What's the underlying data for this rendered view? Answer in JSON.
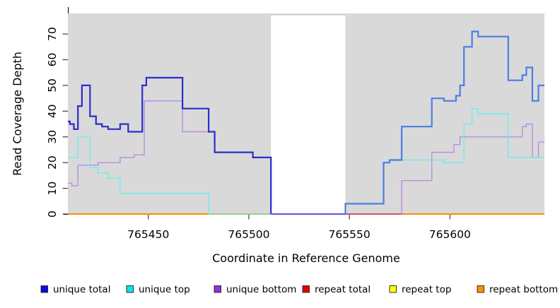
{
  "chart_data": {
    "type": "line",
    "subtype": "step",
    "title": "",
    "xlabel": "Coordinate in Reference Genome",
    "ylabel": "Read Coverage Depth",
    "xlim": [
      765410,
      765647
    ],
    "ylim": [
      0,
      78
    ],
    "x_ticks": [
      765450,
      765500,
      765550,
      765600
    ],
    "y_ticks": [
      0,
      10,
      20,
      30,
      40,
      50,
      60,
      70
    ],
    "grid": false,
    "panel_bg": "#d9d9d9",
    "gap_region": {
      "start": 765511,
      "end": 765548,
      "color": "#ffffff",
      "top_edge_color": "#c4c4c4"
    },
    "series": [
      {
        "name": "repeat total",
        "legend_color": "#e80000",
        "chunks": [
          {
            "color": "#e80000",
            "width": 1.2,
            "points": [
              [
                765410,
                0
              ],
              [
                765647,
                0
              ]
            ]
          }
        ]
      },
      {
        "name": "repeat top",
        "legend_color": "#ffff00",
        "chunks": [
          {
            "color": "#ffe800",
            "width": 1.2,
            "points": [
              [
                765410,
                0
              ],
              [
                765647,
                0
              ]
            ]
          }
        ]
      },
      {
        "name": "repeat bottom",
        "legend_color": "#ff9100",
        "chunks": [
          {
            "color": "#ff8c00",
            "width": 2,
            "points": [
              [
                765410,
                0
              ],
              [
                765647,
                0
              ]
            ]
          }
        ]
      },
      {
        "name": "unique bottom",
        "legend_color": "#9a2ad4",
        "chunks": [
          {
            "color": "#b98ce0",
            "width": 1.4,
            "points": [
              [
                765410,
                12
              ],
              [
                765412,
                11
              ],
              [
                765415,
                19
              ],
              [
                765425,
                20
              ],
              [
                765436,
                22
              ],
              [
                765443,
                23
              ],
              [
                765448,
                44
              ],
              [
                765467,
                32
              ],
              [
                765483,
                24
              ],
              [
                765502,
                22
              ],
              [
                765511,
                0
              ],
              [
                765576,
                13
              ],
              [
                765591,
                24
              ],
              [
                765602,
                27
              ],
              [
                765605,
                30
              ],
              [
                765636,
                34
              ],
              [
                765638,
                35
              ],
              [
                765641,
                22
              ],
              [
                765644,
                28
              ],
              [
                765647,
                28
              ]
            ]
          }
        ]
      },
      {
        "name": "unique top",
        "legend_color": "#00e8e8",
        "chunks": [
          {
            "color": "#6ceeec",
            "width": 1.4,
            "points": [
              [
                765410,
                22
              ],
              [
                765415,
                30
              ],
              [
                765421,
                18
              ],
              [
                765425,
                16
              ],
              [
                765430,
                14
              ],
              [
                765436,
                8
              ],
              [
                765480,
                0
              ],
              [
                765548,
                4
              ],
              [
                765567,
                20
              ],
              [
                765570,
                21
              ],
              [
                765597,
                20
              ],
              [
                765607,
                35
              ],
              [
                765611,
                41
              ],
              [
                765614,
                39
              ],
              [
                765629,
                22
              ],
              [
                765647,
                22
              ]
            ]
          }
        ]
      },
      {
        "name": "unique total",
        "legend_color": "#0a0ae8",
        "chunks": [
          {
            "color": "#2c2cd0",
            "width": 2.2,
            "points": [
              [
                765410,
                36
              ],
              [
                765411,
                35
              ],
              [
                765413,
                33
              ],
              [
                765415,
                42
              ],
              [
                765417,
                50
              ],
              [
                765421,
                38
              ],
              [
                765424,
                35
              ],
              [
                765427,
                34
              ],
              [
                765430,
                33
              ],
              [
                765436,
                35
              ],
              [
                765440,
                32
              ],
              [
                765447,
                50
              ],
              [
                765449,
                53
              ],
              [
                765467,
                41
              ],
              [
                765480,
                32
              ],
              [
                765483,
                24
              ],
              [
                765502,
                22
              ],
              [
                765511,
                0
              ]
            ]
          },
          {
            "color": "#6a5ae8",
            "width": 2.2,
            "points": [
              [
                765511,
                0
              ],
              [
                765548,
                0
              ]
            ]
          },
          {
            "color": "#4b7ee4",
            "width": 2.2,
            "points": [
              [
                765548,
                0
              ],
              [
                765548,
                4
              ],
              [
                765567,
                20
              ],
              [
                765570,
                21
              ],
              [
                765576,
                34
              ],
              [
                765591,
                45
              ],
              [
                765597,
                44
              ],
              [
                765603,
                46
              ],
              [
                765605,
                50
              ],
              [
                765607,
                65
              ],
              [
                765611,
                71
              ],
              [
                765614,
                69
              ],
              [
                765629,
                52
              ],
              [
                765636,
                54
              ],
              [
                765638,
                57
              ],
              [
                765641,
                44
              ],
              [
                765644,
                50
              ],
              [
                765647,
                50
              ]
            ]
          }
        ]
      }
    ],
    "bottom_overlays": [
      {
        "name": "unique-top-over-repeat-bottom",
        "color": "#90d690",
        "width": 1.5,
        "value": 0,
        "from": 765480,
        "to": 765511
      },
      {
        "name": "unique-bottom-over-repeat-bottom",
        "color": "#cf3e63",
        "width": 1.5,
        "value": 0,
        "from": 765548,
        "to": 765576
      }
    ],
    "legend": {
      "position": "bottom",
      "items": [
        {
          "label": "unique total",
          "color": "#0a0ae8"
        },
        {
          "label": "unique top",
          "color": "#00e8e8"
        },
        {
          "label": "unique bottom",
          "color": "#9a2ad4"
        },
        {
          "label": "repeat total",
          "color": "#e80000"
        },
        {
          "label": "repeat top",
          "color": "#ffff00"
        },
        {
          "label": "repeat bottom",
          "color": "#ff9100"
        }
      ]
    }
  }
}
